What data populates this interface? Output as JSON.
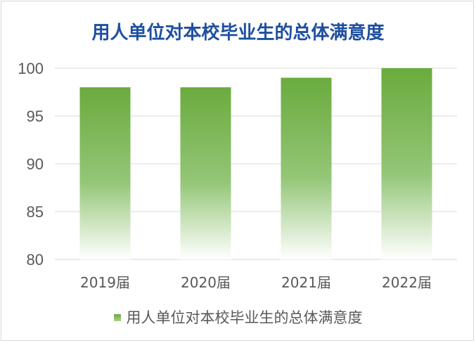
{
  "chart_data": {
    "type": "bar",
    "title": "用人单位对本校毕业生的总体满意度",
    "categories": [
      "2019届",
      "2020届",
      "2021届",
      "2022届"
    ],
    "series": [
      {
        "name": "用人单位对本校毕业生的总体满意度",
        "values": [
          98,
          98,
          99,
          100
        ]
      }
    ],
    "ylim": [
      80,
      100
    ],
    "yticks": [
      "80",
      "85",
      "90",
      "95",
      "100"
    ],
    "grid": true,
    "legend": "bottom",
    "colors": {
      "bar_top": "#6aab3e",
      "bar_bottom": "#ffffff",
      "title": "#1f4fa0",
      "grid": "#d9d9d9",
      "text": "#595959"
    }
  }
}
